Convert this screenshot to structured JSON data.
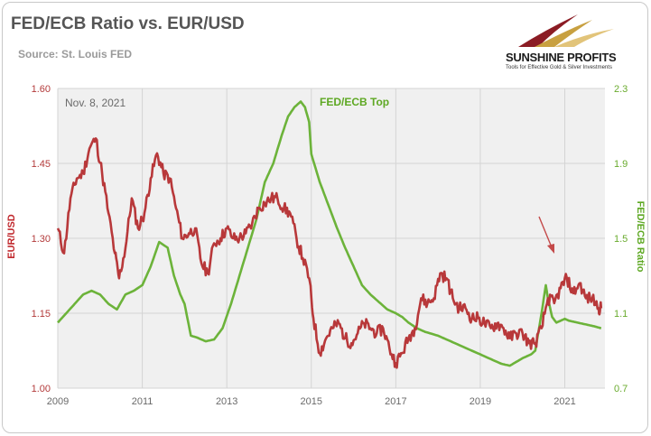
{
  "header": {
    "title": "FED/ECB Ratio vs. EUR/USD",
    "subtitle": "Source: St. Louis FED"
  },
  "logo": {
    "name": "SUNSHINE PROFITS",
    "tagline": "Tools for Effective Gold & Silver Investments"
  },
  "colors": {
    "eurusd": "#b8383a",
    "fedecb": "#6cb33a",
    "plot_bg": "#f0f0f0",
    "grid": "#d4d4d4",
    "arrow": "#c44a4a"
  },
  "chart_data": {
    "type": "line",
    "title": "FED/ECB Ratio vs. EUR/USD",
    "xlabel": "",
    "x_ticks": [
      "2009",
      "2011",
      "2013",
      "2015",
      "2017",
      "2019",
      "2021"
    ],
    "y_left": {
      "label": "EUR/USD",
      "ticks": [
        "1.00",
        "1.15",
        "1.30",
        "1.45",
        "1.60"
      ],
      "ylim": [
        1.0,
        1.6
      ]
    },
    "y_right": {
      "label": "FED/ECB Ratio",
      "ticks": [
        "0.7",
        "1.1",
        "1.5",
        "1.9",
        "2.3"
      ],
      "ylim": [
        0.7,
        2.3
      ]
    },
    "xlim": [
      2009.0,
      2021.95
    ],
    "grid": true,
    "annotations": [
      {
        "text": "Nov. 8, 2021"
      },
      {
        "text": "FED/ECB Top"
      }
    ],
    "series": [
      {
        "name": "EUR/USD",
        "axis": "left",
        "x": [
          2009.0,
          2009.15,
          2009.3,
          2009.45,
          2009.6,
          2009.75,
          2009.9,
          2010.05,
          2010.2,
          2010.35,
          2010.45,
          2010.6,
          2010.75,
          2010.9,
          2011.05,
          2011.2,
          2011.35,
          2011.5,
          2011.65,
          2011.8,
          2011.95,
          2012.1,
          2012.25,
          2012.4,
          2012.55,
          2012.7,
          2012.85,
          2013.0,
          2013.15,
          2013.3,
          2013.45,
          2013.6,
          2013.75,
          2013.9,
          2014.05,
          2014.2,
          2014.35,
          2014.5,
          2014.65,
          2014.8,
          2014.95,
          2015.05,
          2015.2,
          2015.35,
          2015.5,
          2015.65,
          2015.8,
          2015.95,
          2016.1,
          2016.25,
          2016.4,
          2016.55,
          2016.7,
          2016.85,
          2017.0,
          2017.15,
          2017.3,
          2017.45,
          2017.6,
          2017.75,
          2017.9,
          2018.05,
          2018.2,
          2018.35,
          2018.5,
          2018.65,
          2018.8,
          2018.95,
          2019.1,
          2019.25,
          2019.4,
          2019.55,
          2019.7,
          2019.85,
          2020.0,
          2020.15,
          2020.3,
          2020.45,
          2020.6,
          2020.75,
          2020.9,
          2021.05,
          2021.2,
          2021.35,
          2021.5,
          2021.65,
          2021.8,
          2021.86
        ],
        "values": [
          1.32,
          1.27,
          1.38,
          1.42,
          1.43,
          1.48,
          1.5,
          1.43,
          1.35,
          1.27,
          1.22,
          1.28,
          1.38,
          1.32,
          1.35,
          1.42,
          1.47,
          1.43,
          1.42,
          1.36,
          1.3,
          1.31,
          1.32,
          1.25,
          1.23,
          1.29,
          1.3,
          1.32,
          1.3,
          1.3,
          1.31,
          1.33,
          1.36,
          1.37,
          1.38,
          1.38,
          1.36,
          1.35,
          1.3,
          1.26,
          1.22,
          1.14,
          1.07,
          1.1,
          1.12,
          1.13,
          1.1,
          1.09,
          1.11,
          1.13,
          1.12,
          1.11,
          1.12,
          1.08,
          1.05,
          1.07,
          1.1,
          1.12,
          1.18,
          1.17,
          1.18,
          1.23,
          1.22,
          1.18,
          1.16,
          1.16,
          1.14,
          1.14,
          1.13,
          1.12,
          1.13,
          1.12,
          1.1,
          1.11,
          1.11,
          1.09,
          1.09,
          1.12,
          1.18,
          1.17,
          1.2,
          1.22,
          1.19,
          1.21,
          1.18,
          1.18,
          1.16,
          1.16
        ]
      },
      {
        "name": "FED/ECB Ratio",
        "axis": "right",
        "x": [
          2009.0,
          2009.2,
          2009.4,
          2009.6,
          2009.8,
          2010.0,
          2010.2,
          2010.4,
          2010.6,
          2010.8,
          2011.0,
          2011.2,
          2011.4,
          2011.6,
          2011.75,
          2011.9,
          2012.0,
          2012.15,
          2012.3,
          2012.5,
          2012.7,
          2012.9,
          2013.1,
          2013.3,
          2013.5,
          2013.7,
          2013.9,
          2014.1,
          2014.3,
          2014.45,
          2014.6,
          2014.75,
          2014.85,
          2014.95,
          2015.0,
          2015.2,
          2015.4,
          2015.6,
          2015.8,
          2016.0,
          2016.2,
          2016.4,
          2016.6,
          2016.8,
          2017.0,
          2017.15,
          2017.3,
          2017.5,
          2017.7,
          2018.0,
          2018.3,
          2018.6,
          2018.9,
          2019.2,
          2019.5,
          2019.7,
          2019.85,
          2020.0,
          2020.2,
          2020.3,
          2020.45,
          2020.55,
          2020.6,
          2020.7,
          2020.8,
          2021.0,
          2021.1,
          2021.3,
          2021.5,
          2021.7,
          2021.86
        ],
        "values": [
          1.05,
          1.1,
          1.15,
          1.2,
          1.22,
          1.2,
          1.15,
          1.12,
          1.2,
          1.22,
          1.25,
          1.35,
          1.48,
          1.45,
          1.3,
          1.2,
          1.15,
          0.98,
          0.97,
          0.95,
          0.96,
          1.02,
          1.15,
          1.3,
          1.45,
          1.6,
          1.8,
          1.9,
          2.05,
          2.15,
          2.2,
          2.23,
          2.2,
          2.12,
          1.95,
          1.8,
          1.68,
          1.56,
          1.45,
          1.35,
          1.25,
          1.2,
          1.16,
          1.12,
          1.1,
          1.08,
          1.05,
          1.02,
          1.0,
          0.98,
          0.95,
          0.92,
          0.89,
          0.86,
          0.83,
          0.82,
          0.84,
          0.86,
          0.88,
          0.9,
          1.1,
          1.25,
          1.18,
          1.08,
          1.05,
          1.07,
          1.06,
          1.05,
          1.04,
          1.03,
          1.02
        ]
      }
    ]
  }
}
